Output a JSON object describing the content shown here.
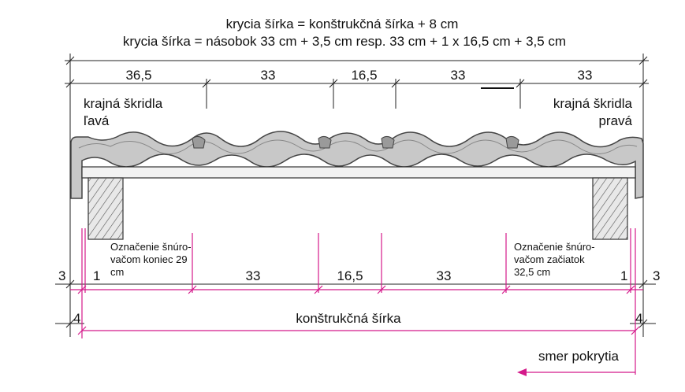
{
  "formula": {
    "line1": "krycia šírka = konštrukčná šírka + 8 cm",
    "line2": "krycia šírka = násobok 33 cm + 3,5 cm resp. 33 cm + 1 x 16,5 cm + 3,5 cm"
  },
  "top_dimensions": [
    "36,5",
    "33",
    "16,5",
    "33",
    "33"
  ],
  "edge_tiles": {
    "left_line1": "krajná škridla",
    "left_line2": "ľavá",
    "right_line1": "krajná škridla",
    "right_line2": "pravá"
  },
  "marking": {
    "left_line1": "Označenie šnúro-",
    "left_line2": "vačom koniec 29",
    "left_line3": "cm",
    "right_line1": "Označenie šnúro-",
    "right_line2": "vačom začiatok",
    "right_line3": "32,5 cm"
  },
  "bottom_dimensions": {
    "left_outer": "3",
    "left_inner": "1",
    "segments": [
      "33",
      "16,5",
      "33"
    ],
    "right_inner": "1",
    "right_outer": "3"
  },
  "construction": {
    "left_offset": "4",
    "label": "konštrukčná šírka",
    "right_offset": "4"
  },
  "direction_label": "smer pokrytia",
  "colors": {
    "accent": "#d4198a",
    "tile_fill": "#c8c8c8",
    "tile_stroke": "#444444",
    "line": "#222222"
  }
}
